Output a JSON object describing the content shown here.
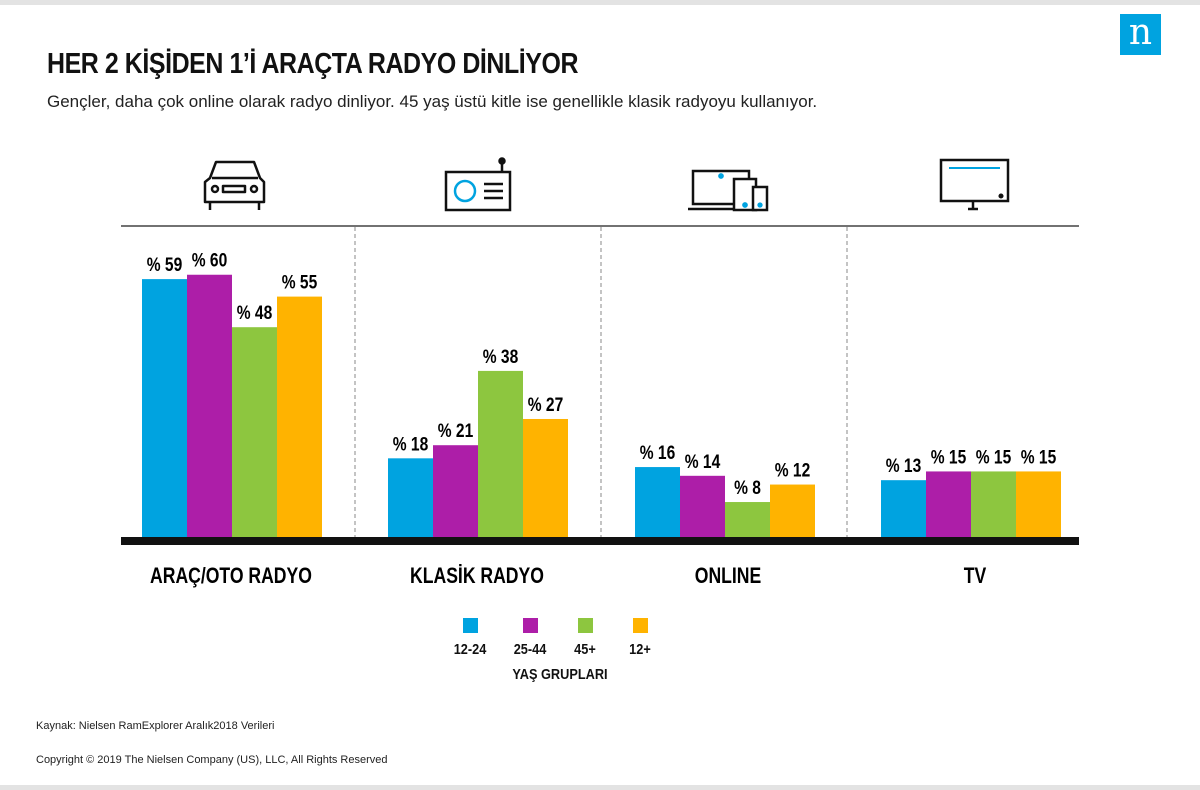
{
  "brand": {
    "logo_text": "n",
    "color": "#00a3e0"
  },
  "header": {
    "title": "HER 2 KİŞİDEN 1’İ ARAÇTA RADYO DİNLİYOR",
    "subtitle": "Gençler, daha çok online olarak radyo dinliyor. 45 yaş üstü kitle ise genellikle klasik radyoyu kullanıyor."
  },
  "icons": [
    "car-icon",
    "radio-icon",
    "devices-icon",
    "tv-icon"
  ],
  "chart_data": {
    "type": "bar",
    "categories": [
      "ARAÇ/OTO RADYO",
      "KLASİK RADYO",
      "ONLINE",
      "TV"
    ],
    "series": [
      {
        "name": "12-24",
        "color": "#00a3e0",
        "values": [
          59,
          18,
          16,
          13
        ]
      },
      {
        "name": "25-44",
        "color": "#ad1ea8",
        "values": [
          60,
          21,
          14,
          15
        ]
      },
      {
        "name": "45+",
        "color": "#8dc63f",
        "values": [
          48,
          38,
          8,
          15
        ]
      },
      {
        "name": "12+",
        "color": "#ffb300",
        "values": [
          55,
          27,
          12,
          15
        ]
      }
    ],
    "value_prefix": "% ",
    "ylim": [
      0,
      75
    ],
    "grid": false,
    "legend_title": "YAŞ GRUPLARI",
    "legend_position": "bottom-center"
  },
  "footer": {
    "source": "Kaynak: Nielsen RamExplorer Aralık2018 Verileri",
    "copyright": "Copyright © 2019 The Nielsen Company (US), LLC, All Rights Reserved"
  }
}
